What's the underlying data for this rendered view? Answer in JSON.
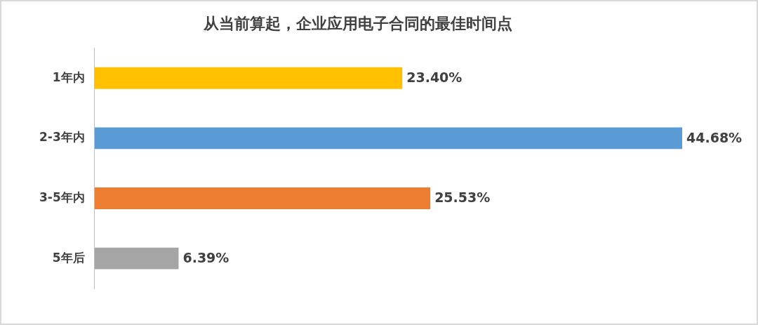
{
  "chart_data": {
    "type": "bar",
    "orientation": "horizontal",
    "title": "从当前算起，企业应用电子合同的最佳时间点",
    "categories": [
      "1年内",
      "2-3年内",
      "3-5年内",
      "5年后"
    ],
    "values": [
      23.4,
      44.68,
      25.53,
      6.39
    ],
    "colors": [
      "#ffc000",
      "#5b9bd5",
      "#ed7d31",
      "#a5a5a5"
    ],
    "value_labels": [
      "23.40%",
      "44.68%",
      "25.53%",
      "6.39%"
    ],
    "legend": false
  }
}
